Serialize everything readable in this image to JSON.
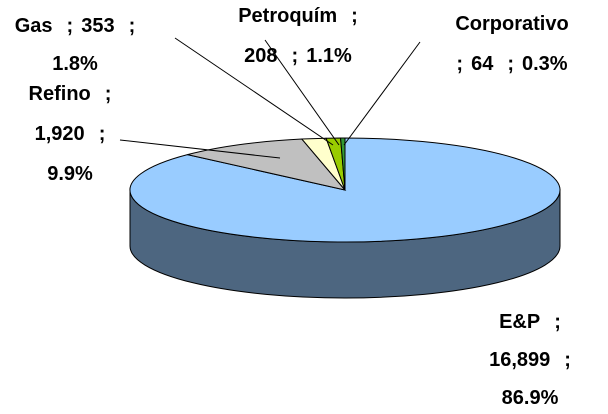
{
  "chart_data": {
    "type": "pie",
    "separator": ";",
    "categories": [
      "E&P",
      "Refino",
      "Gas",
      "Petroquím",
      "Corporativo"
    ],
    "values": [
      16899,
      1920,
      353,
      208,
      64
    ],
    "value_labels": [
      "16,899",
      "1,920",
      "353",
      "208",
      "64"
    ],
    "percents": [
      86.9,
      9.9,
      1.8,
      1.1,
      0.3
    ],
    "percent_labels": [
      "86.9%",
      "9.9%",
      "1.8%",
      "1.1%",
      "0.3%"
    ],
    "colors": [
      "#99ccff",
      "#c0c0c0",
      "#ffffcc",
      "#99cc00",
      "#339933"
    ]
  }
}
